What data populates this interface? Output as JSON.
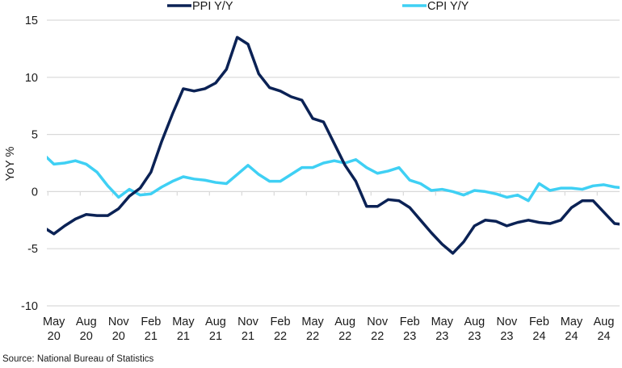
{
  "chart_data": {
    "type": "line",
    "title": "",
    "xlabel": "",
    "ylabel": "YoY %",
    "ylim": [
      -10,
      15
    ],
    "yticks": [
      15,
      10,
      5,
      0,
      -5,
      -10
    ],
    "grid": true,
    "legend_position": "top",
    "x": [
      "Apr 20",
      "May 20",
      "Jun 20",
      "Jul 20",
      "Aug 20",
      "Sep 20",
      "Oct 20",
      "Nov 20",
      "Dec 20",
      "Jan 21",
      "Feb 21",
      "Mar 21",
      "Apr 21",
      "May 21",
      "Jun 21",
      "Jul 21",
      "Aug 21",
      "Sep 21",
      "Oct 21",
      "Nov 21",
      "Dec 21",
      "Jan 22",
      "Feb 22",
      "Mar 22",
      "Apr 22",
      "May 22",
      "Jun 22",
      "Jul 22",
      "Aug 22",
      "Sep 22",
      "Oct 22",
      "Nov 22",
      "Dec 22",
      "Jan 23",
      "Feb 23",
      "Mar 23",
      "Apr 23",
      "May 23",
      "Jun 23",
      "Jul 23",
      "Aug 23",
      "Sep 23",
      "Oct 23",
      "Nov 23",
      "Dec 23",
      "Jan 24",
      "Feb 24",
      "Mar 24",
      "Apr 24",
      "May 24",
      "Jun 24",
      "Jul 24",
      "Aug 24",
      "Sep 24",
      "Oct 24"
    ],
    "xtick_labels": [
      {
        "month": "May",
        "year": "20",
        "index": 1
      },
      {
        "month": "Aug",
        "year": "20",
        "index": 4
      },
      {
        "month": "Nov",
        "year": "20",
        "index": 7
      },
      {
        "month": "Feb",
        "year": "21",
        "index": 10
      },
      {
        "month": "May",
        "year": "21",
        "index": 13
      },
      {
        "month": "Aug",
        "year": "21",
        "index": 16
      },
      {
        "month": "Nov",
        "year": "21",
        "index": 19
      },
      {
        "month": "Feb",
        "year": "22",
        "index": 22
      },
      {
        "month": "May",
        "year": "22",
        "index": 25
      },
      {
        "month": "Aug",
        "year": "22",
        "index": 28
      },
      {
        "month": "Nov",
        "year": "22",
        "index": 31
      },
      {
        "month": "Feb",
        "year": "23",
        "index": 34
      },
      {
        "month": "May",
        "year": "23",
        "index": 37
      },
      {
        "month": "Aug",
        "year": "23",
        "index": 40
      },
      {
        "month": "Nov",
        "year": "23",
        "index": 43
      },
      {
        "month": "Feb",
        "year": "24",
        "index": 46
      },
      {
        "month": "May",
        "year": "24",
        "index": 49
      },
      {
        "month": "Aug",
        "year": "24",
        "index": 52
      }
    ],
    "series": [
      {
        "name": "PPI Y/Y",
        "color": "#0b2255",
        "values": [
          -3.1,
          -3.7,
          -3.0,
          -2.4,
          -2.0,
          -2.1,
          -2.1,
          -1.5,
          -0.4,
          0.3,
          1.7,
          4.4,
          6.8,
          9.0,
          8.8,
          9.0,
          9.5,
          10.7,
          13.5,
          12.9,
          10.3,
          9.1,
          8.8,
          8.3,
          8.0,
          6.4,
          6.1,
          4.2,
          2.3,
          0.9,
          -1.3,
          -1.3,
          -0.7,
          -0.8,
          -1.4,
          -2.5,
          -3.6,
          -4.6,
          -5.4,
          -4.4,
          -3.0,
          -2.5,
          -2.6,
          -3.0,
          -2.7,
          -2.5,
          -2.7,
          -2.8,
          -2.5,
          -1.4,
          -0.8,
          -0.8,
          -1.8,
          -2.8,
          -2.9
        ]
      },
      {
        "name": "CPI Y/Y",
        "color": "#3fd0f4",
        "values": [
          3.3,
          2.4,
          2.5,
          2.7,
          2.4,
          1.7,
          0.5,
          -0.5,
          0.2,
          -0.3,
          -0.2,
          0.4,
          0.9,
          1.3,
          1.1,
          1.0,
          0.8,
          0.7,
          1.5,
          2.3,
          1.5,
          0.9,
          0.9,
          1.5,
          2.1,
          2.1,
          2.5,
          2.7,
          2.5,
          2.8,
          2.1,
          1.6,
          1.8,
          2.1,
          1.0,
          0.7,
          0.1,
          0.2,
          0.0,
          -0.3,
          0.1,
          0.0,
          -0.2,
          -0.5,
          -0.3,
          -0.8,
          0.7,
          0.1,
          0.3,
          0.3,
          0.2,
          0.5,
          0.6,
          0.4,
          0.3
        ]
      }
    ],
    "gridline_color": "#d9d9d9"
  },
  "source": "Source: National Bureau of Statistics"
}
